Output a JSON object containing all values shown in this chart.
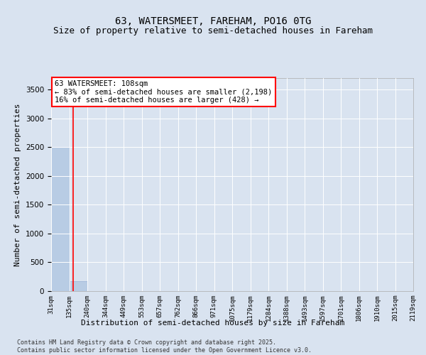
{
  "title": "63, WATERSMEET, FAREHAM, PO16 0TG",
  "subtitle": "Size of property relative to semi-detached houses in Fareham",
  "xlabel": "Distribution of semi-detached houses by size in Fareham",
  "ylabel": "Number of semi-detached properties",
  "bar_values": [
    2500,
    175,
    5,
    2,
    1,
    0,
    0,
    0,
    0,
    0,
    0,
    0,
    0,
    0,
    0,
    0,
    0,
    0,
    0,
    0
  ],
  "bar_color": "#b8cce4",
  "bar_edge_color": "#9ab3d5",
  "tick_labels": [
    "31sqm",
    "135sqm",
    "240sqm",
    "344sqm",
    "449sqm",
    "553sqm",
    "657sqm",
    "762sqm",
    "866sqm",
    "971sqm",
    "1075sqm",
    "1179sqm",
    "1284sqm",
    "1388sqm",
    "1493sqm",
    "1597sqm",
    "1701sqm",
    "1806sqm",
    "1910sqm",
    "2015sqm",
    "2119sqm"
  ],
  "ylim": [
    0,
    3700
  ],
  "yticks": [
    0,
    500,
    1000,
    1500,
    2000,
    2500,
    3000,
    3500
  ],
  "red_line_x": 0.72,
  "annotation_title": "63 WATERSMEET: 108sqm",
  "annotation_line1": "← 83% of semi-detached houses are smaller (2,198)",
  "annotation_line2": "16% of semi-detached houses are larger (428) →",
  "footer_line1": "Contains HM Land Registry data © Crown copyright and database right 2025.",
  "footer_line2": "Contains public sector information licensed under the Open Government Licence v3.0.",
  "background_color": "#d9e3f0",
  "plot_bg_color": "#d9e3f0",
  "grid_color": "#ffffff",
  "title_fontsize": 10,
  "subtitle_fontsize": 9,
  "axis_label_fontsize": 8,
  "tick_fontsize": 6.5,
  "footer_fontsize": 6,
  "annotation_fontsize": 7.5
}
